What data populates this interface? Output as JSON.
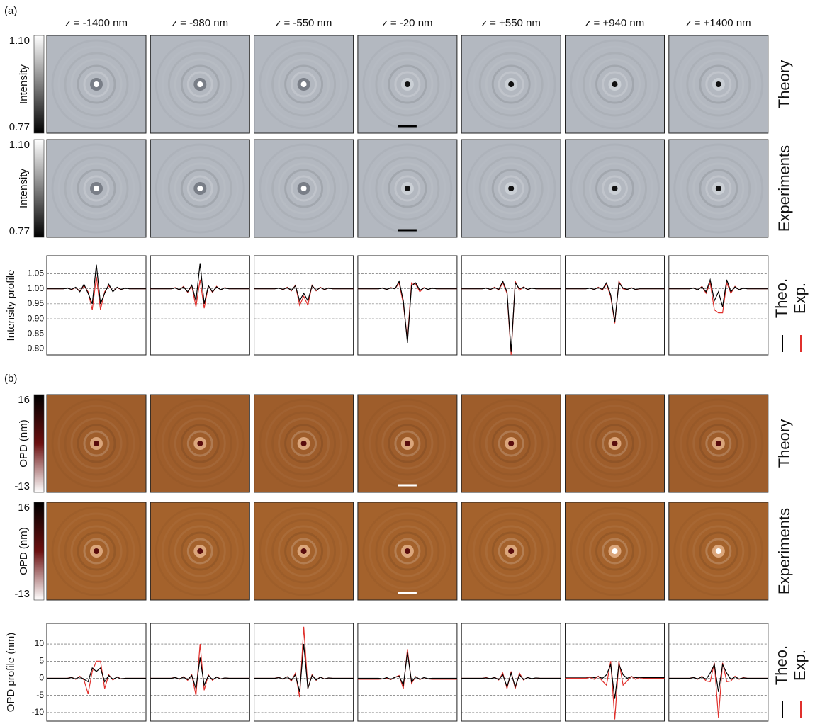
{
  "columns": [
    "z = -1400 nm",
    "z = -980 nm",
    "z = -550 nm",
    "z = -20 nm",
    "z = +550 nm",
    "z = +940 nm",
    "z = +1400 nm"
  ],
  "row_labels": [
    "Theory",
    "Experiments"
  ],
  "panels": [
    {
      "label": "(a)",
      "colorbar": {
        "label": "Intensity",
        "ticks": [
          {
            "value": 1.1,
            "label": "1.10"
          },
          0.77
        ],
        "colors": [
          "#ffffff",
          "#000000"
        ]
      }
    },
    {
      "label": "(b)",
      "colorbar": {
        "label": "OPD (nm)",
        "ticks": [
          16,
          -13
        ],
        "colors": [
          "#000000",
          "#6b1010",
          "#ffffff"
        ]
      }
    }
  ],
  "chart_data": [
    {
      "type": "line",
      "ylabel": "Intensity profile",
      "ylim": [
        0.78,
        1.11
      ],
      "yticks": [
        1.05,
        {
          "value": 1,
          "label": "1.00"
        },
        0.95,
        {
          "value": 0.9,
          "label": "0.90"
        },
        0.85,
        {
          "value": 0.8,
          "label": "0.80"
        }
      ],
      "grid": true,
      "series": [
        {
          "name": "Theo.",
          "color": "#000000",
          "values": [
            [
              1,
              1,
              1,
              1,
              1,
              1.002,
              0.998,
              1.005,
              0.99,
              1.015,
              0.985,
              0.95,
              1.08,
              0.95,
              0.985,
              1.015,
              0.99,
              1.005,
              0.998,
              1.002,
              1,
              1,
              1,
              1,
              1
            ],
            [
              1,
              1,
              1,
              1,
              1,
              1,
              1.003,
              0.997,
              1.006,
              0.99,
              1.012,
              0.96,
              1.085,
              0.95,
              1.01,
              0.99,
              1.006,
              0.997,
              1.003,
              1,
              1,
              1,
              1,
              1,
              1
            ],
            [
              1,
              1,
              1,
              1,
              1,
              1,
              1.002,
              0.998,
              1.004,
              0.995,
              1.01,
              0.96,
              0.985,
              0.96,
              1.01,
              0.995,
              1.004,
              0.998,
              1.002,
              1,
              1,
              1,
              1,
              1,
              1
            ],
            [
              1,
              1,
              1,
              1,
              1,
              1,
              1.002,
              0.998,
              1.003,
              1,
              1.025,
              0.96,
              0.82,
              1.01,
              1.02,
              0.995,
              1.003,
              0.998,
              1.002,
              1,
              1,
              1,
              1,
              1,
              1
            ],
            [
              1,
              1,
              1,
              1,
              1,
              1,
              1.002,
              0.998,
              1.004,
              0.998,
              1.025,
              0.99,
              0.79,
              1.02,
              1,
              1.005,
              0.998,
              1.002,
              1,
              1,
              1,
              1,
              1,
              1,
              1
            ],
            [
              1,
              1,
              1,
              1,
              1,
              1,
              1.002,
              0.998,
              1.004,
              0.998,
              1.02,
              0.98,
              0.89,
              1.02,
              1.002,
              0.998,
              1.003,
              0.998,
              1,
              1,
              1,
              1,
              1,
              1,
              1
            ],
            [
              1,
              1,
              1,
              1,
              1,
              1,
              1.002,
              0.997,
              1.006,
              0.99,
              1.03,
              0.96,
              0.99,
              0.94,
              1.03,
              0.99,
              1.006,
              0.997,
              1.002,
              1,
              1,
              1,
              1,
              1,
              1
            ]
          ]
        },
        {
          "name": "Exp.",
          "color": "#e0302c",
          "values": [
            [
              1,
              1,
              1,
              1,
              1,
              1.003,
              0.997,
              1.004,
              0.992,
              1.01,
              0.99,
              0.93,
              1.04,
              0.93,
              0.99,
              1.01,
              0.992,
              1.004,
              0.997,
              1.003,
              1,
              1,
              1,
              1,
              1
            ],
            [
              1,
              1,
              1,
              1,
              1,
              1,
              1.004,
              0.996,
              1.008,
              0.988,
              1.01,
              0.94,
              1.03,
              0.935,
              1.01,
              0.988,
              1.008,
              0.996,
              1.004,
              1,
              1,
              1,
              1,
              1,
              1
            ],
            [
              1,
              1,
              1,
              1,
              1,
              1,
              1.003,
              0.997,
              1.005,
              0.993,
              1.012,
              0.945,
              0.975,
              0.945,
              1.012,
              0.993,
              1.005,
              0.997,
              1.003,
              1,
              1,
              1,
              1,
              1,
              1
            ],
            [
              1,
              1,
              1,
              1,
              1,
              1,
              1.003,
              0.997,
              1.004,
              1,
              1.02,
              0.95,
              0.83,
              1.02,
              1.015,
              0.99,
              1.004,
              0.997,
              1.003,
              1,
              1,
              1,
              1,
              1,
              1
            ],
            [
              1,
              1,
              1,
              1,
              1,
              1,
              1.003,
              0.997,
              1.005,
              0.996,
              1.02,
              0.985,
              0.78,
              1.025,
              0.995,
              1.006,
              0.997,
              1.003,
              1,
              1,
              1,
              1,
              1,
              1,
              1
            ],
            [
              1,
              1,
              1,
              1,
              1,
              1,
              1.003,
              0.997,
              1.005,
              0.996,
              1.015,
              0.975,
              0.885,
              1.025,
              1,
              0.997,
              1.004,
              0.997,
              1,
              1,
              1,
              1,
              1,
              1,
              1
            ],
            [
              1,
              1,
              1,
              1,
              1,
              1,
              1.003,
              0.996,
              1.008,
              0.985,
              1.02,
              0.93,
              0.92,
              0.92,
              1.02,
              0.985,
              1.008,
              0.996,
              1.003,
              1,
              1,
              1,
              1,
              1,
              1
            ]
          ]
        }
      ]
    },
    {
      "type": "line",
      "ylabel": "OPD profile (nm)",
      "ylim": [
        -12.5,
        16
      ],
      "yticks": [
        10,
        5,
        0,
        -5,
        -10
      ],
      "grid": true,
      "series": [
        {
          "name": "Theo.",
          "color": "#000000",
          "values": [
            [
              0,
              0,
              0,
              0,
              0,
              0,
              0.2,
              -0.2,
              0.4,
              -0.3,
              -1,
              3,
              2,
              3,
              -1,
              0.8,
              -0.3,
              0.3,
              -0.2,
              0,
              0,
              0,
              0,
              0,
              0
            ],
            [
              0,
              0,
              0,
              0,
              0,
              0,
              0.2,
              -0.2,
              0.3,
              -0.4,
              0.8,
              -3,
              6,
              -2,
              0.8,
              -0.4,
              0.3,
              -0.2,
              0.1,
              0,
              0,
              0,
              0,
              0,
              0
            ],
            [
              0,
              0,
              0,
              0,
              0,
              0,
              0.2,
              -0.2,
              0.4,
              -0.5,
              1,
              -4,
              10,
              -3,
              0.8,
              -0.5,
              0.3,
              -0.2,
              0.1,
              0,
              0,
              0,
              0,
              0,
              0
            ],
            [
              0,
              0,
              0,
              0,
              0,
              0,
              -0.2,
              0.2,
              -0.3,
              0.3,
              0.6,
              -2,
              7.5,
              -1,
              0.4,
              -0.3,
              0.2,
              -0.1,
              0,
              0,
              0,
              0,
              0,
              0,
              0
            ],
            [
              0,
              0,
              0,
              0,
              0,
              0,
              0.1,
              -0.1,
              0.2,
              -0.4,
              1,
              -2.5,
              1.5,
              -2.5,
              1,
              -0.4,
              0.2,
              -0.1,
              0.1,
              0,
              0,
              0,
              0,
              0,
              0
            ],
            [
              0.3,
              0.3,
              0.3,
              0.3,
              0.3,
              0.3,
              0.4,
              0.2,
              0.5,
              0,
              1,
              4,
              -6,
              4,
              1,
              0,
              0.5,
              0.2,
              0.3,
              0.2,
              0.2,
              0.2,
              0.2,
              0.2,
              0.2
            ],
            [
              0,
              0,
              0,
              0,
              0,
              0,
              0.2,
              -0.2,
              0.4,
              -0.3,
              1.5,
              4,
              -4,
              4,
              1.5,
              -0.3,
              0.4,
              -0.2,
              0.1,
              0,
              0,
              0,
              0,
              0,
              0
            ]
          ]
        },
        {
          "name": "Exp.",
          "color": "#e0302c",
          "values": [
            [
              0,
              0,
              0,
              0,
              0,
              0,
              0.3,
              -0.3,
              0.6,
              -0.5,
              -4.5,
              2,
              5,
              5,
              -3,
              1,
              -0.5,
              0.4,
              -0.2,
              0,
              0,
              0,
              0,
              0,
              0
            ],
            [
              0,
              0,
              0,
              0,
              0,
              0,
              0.3,
              -0.3,
              0.5,
              -0.6,
              1,
              -5,
              10,
              -3.5,
              1,
              -0.6,
              0.4,
              -0.2,
              0.1,
              0,
              0,
              0,
              0,
              0,
              0
            ],
            [
              0,
              0,
              0,
              0,
              0,
              0,
              0.3,
              -0.3,
              0.5,
              -0.8,
              1.5,
              -5.5,
              15,
              -3,
              1,
              -0.6,
              0.4,
              -0.2,
              0.1,
              0,
              0,
              0,
              0,
              0,
              0
            ],
            [
              -0.3,
              -0.3,
              -0.3,
              -0.3,
              -0.3,
              -0.3,
              -0.2,
              0,
              -0.4,
              0.3,
              0.8,
              -3,
              8.5,
              -1.5,
              0.5,
              -0.4,
              0.2,
              -0.2,
              -0.3,
              -0.3,
              -0.3,
              -0.3,
              -0.3,
              -0.3,
              -0.3
            ],
            [
              0,
              0,
              0,
              0,
              0,
              0,
              0.2,
              -0.2,
              0.3,
              -0.5,
              1.5,
              -3,
              2,
              -3,
              1.5,
              -0.5,
              0.3,
              -0.2,
              0.1,
              0,
              0,
              0,
              0,
              0,
              0
            ],
            [
              0,
              0,
              0,
              0,
              0,
              0,
              0.3,
              -0.3,
              0.6,
              -0.8,
              -2,
              5,
              -12,
              5,
              -2,
              -0.8,
              0.6,
              -0.3,
              0.2,
              0,
              0,
              0,
              0,
              0,
              0
            ],
            [
              0,
              0,
              0,
              0,
              0,
              0,
              0.3,
              -0.3,
              0.6,
              -0.8,
              -1,
              4.5,
              -11.5,
              4.5,
              -1,
              -0.8,
              0.6,
              -0.3,
              0.2,
              0,
              0,
              0,
              0,
              0,
              0
            ]
          ]
        }
      ]
    }
  ]
}
